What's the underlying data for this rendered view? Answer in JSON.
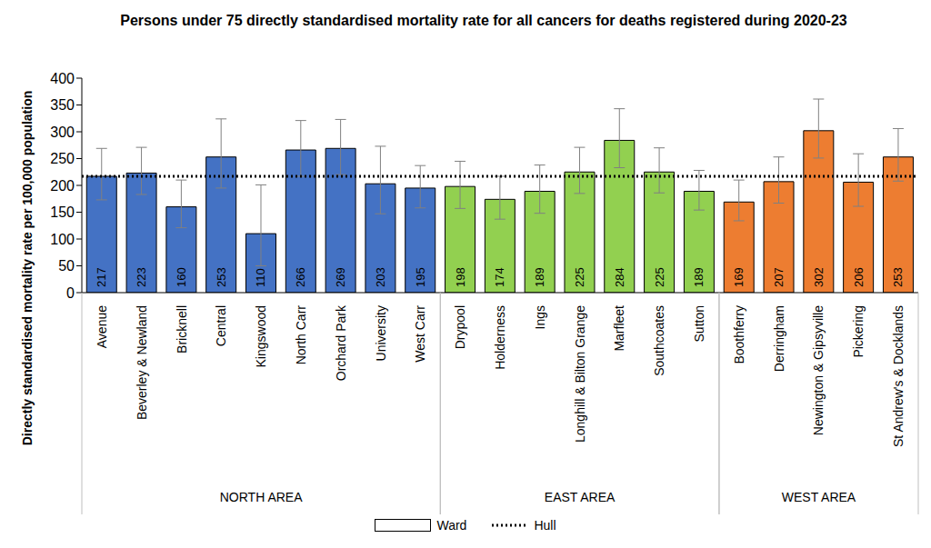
{
  "chart_data": {
    "type": "bar",
    "title": "Persons under 75 directly standardised mortality rate for all cancers for deaths registered during 2020-23",
    "y_label": "Directly standardised mortality rate per 100,000 population",
    "categories": [
      "Avenue",
      "Beverley & Newland",
      "Bricknell",
      "Central",
      "Kingswood",
      "North Carr",
      "Orchard Park",
      "University",
      "West Carr",
      "Drypool",
      "Holderness",
      "Ings",
      "Longhill & Bilton Grange",
      "Marfleet",
      "Southcoates",
      "Sutton",
      "Boothferry",
      "Derringham",
      "Newington & Gipsyville",
      "Pickering",
      "St Andrew's & Docklands"
    ],
    "values": [
      217,
      223,
      160,
      253,
      110,
      266,
      269,
      203,
      195,
      198,
      174,
      189,
      225,
      284,
      225,
      189,
      169,
      207,
      302,
      206,
      253
    ],
    "error_low": [
      173,
      183,
      121,
      195,
      50,
      217,
      220,
      147,
      158,
      157,
      137,
      148,
      185,
      233,
      186,
      154,
      134,
      167,
      251,
      161,
      208
    ],
    "error_high": [
      269,
      271,
      210,
      324,
      201,
      321,
      323,
      273,
      237,
      245,
      217,
      238,
      271,
      343,
      270,
      228,
      210,
      253,
      361,
      259,
      306
    ],
    "colors": [
      "#4472c4",
      "#4472c4",
      "#4472c4",
      "#4472c4",
      "#4472c4",
      "#4472c4",
      "#4472c4",
      "#4472c4",
      "#4472c4",
      "#92d050",
      "#92d050",
      "#92d050",
      "#92d050",
      "#92d050",
      "#92d050",
      "#92d050",
      "#ed7d31",
      "#ed7d31",
      "#ed7d31",
      "#ed7d31",
      "#ed7d31"
    ],
    "areas": [
      "NORTH AREA",
      "NORTH AREA",
      "NORTH AREA",
      "NORTH AREA",
      "NORTH AREA",
      "NORTH AREA",
      "NORTH AREA",
      "NORTH AREA",
      "NORTH AREA",
      "EAST AREA",
      "EAST AREA",
      "EAST AREA",
      "EAST AREA",
      "EAST AREA",
      "EAST AREA",
      "EAST AREA",
      "WEST AREA",
      "WEST AREA",
      "WEST AREA",
      "WEST AREA",
      "WEST AREA"
    ],
    "bar_legend": "Ward",
    "reference": {
      "name": "Hull",
      "value": 217,
      "line_style": "dotted"
    },
    "ylim": [
      0,
      400
    ],
    "yticks": [
      0,
      50,
      100,
      150,
      200,
      250,
      300,
      350,
      400
    ],
    "grid": false,
    "data_labels": true,
    "legend": "bottom"
  }
}
